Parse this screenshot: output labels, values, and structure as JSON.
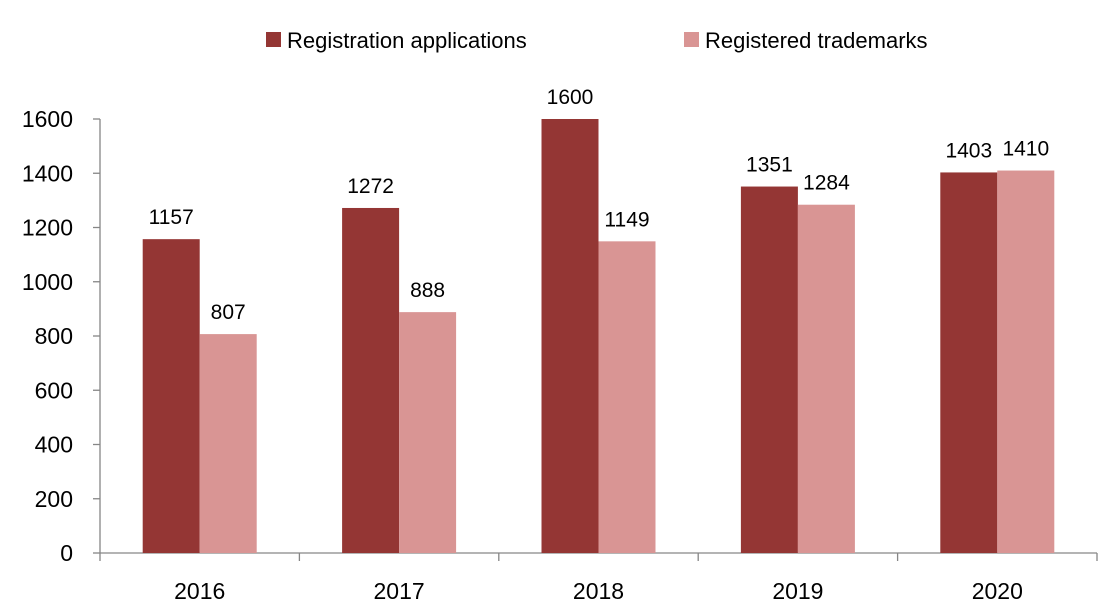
{
  "chart_data": {
    "type": "bar",
    "categories": [
      "2016",
      "2017",
      "2018",
      "2019",
      "2020"
    ],
    "series": [
      {
        "name": "Registration applications",
        "values": [
          1157,
          1272,
          1600,
          1351,
          1403
        ],
        "color": "#943634"
      },
      {
        "name": "Registered trademarks",
        "values": [
          807,
          888,
          1149,
          1284,
          1410
        ],
        "color": "#d99594"
      }
    ],
    "yticks": [
      "0",
      "200",
      "400",
      "600",
      "800",
      "1000",
      "1200",
      "1400",
      "1600"
    ],
    "ylim": [
      0,
      1600
    ],
    "grid": false,
    "legend": "top-center",
    "data_labels": true
  }
}
